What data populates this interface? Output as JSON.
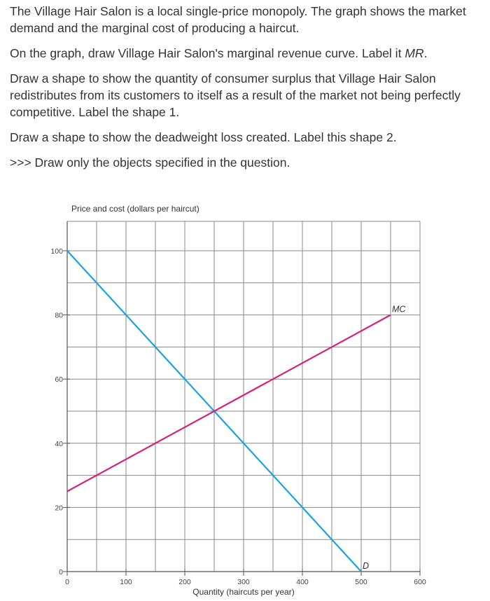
{
  "question": {
    "intro": "The Village Hair Salon is a local single-price monopoly. The graph shows the market demand and the marginal cost of producing a haircut.",
    "step1_prefix": "On the graph, draw Village Hair Salon's marginal revenue curve. Label it ",
    "step1_label": "MR",
    "step1_suffix": ".",
    "step2": "Draw a shape to show the quantity of consumer surplus that Village Hair Salon redistributes from its customers to itself as a result of the market not being perfectly competitive. Label the shape 1.",
    "step3": "Draw a shape to show the deadweight loss created. Label this shape 2.",
    "instruction": ">>> Draw only the objects specified in the question."
  },
  "chart_data": {
    "type": "line",
    "ylabel": "Price and cost (dollars per haircut)",
    "xlabel": "Quantity (haircuts per year)",
    "xlim": [
      0,
      600
    ],
    "ylim": [
      0,
      105
    ],
    "x_ticks": [
      0,
      100,
      200,
      300,
      400,
      500,
      600
    ],
    "y_ticks": [
      0,
      20,
      40,
      60,
      80,
      100
    ],
    "grid": true,
    "series": [
      {
        "name": "D",
        "color": "#1ba1e2",
        "points": [
          [
            0,
            100
          ],
          [
            500,
            0
          ]
        ],
        "label_at": [
          500,
          0
        ]
      },
      {
        "name": "MC",
        "color": "#d4237a",
        "points": [
          [
            0,
            25
          ],
          [
            550,
            80
          ]
        ],
        "label_at": [
          550,
          80
        ]
      }
    ]
  }
}
